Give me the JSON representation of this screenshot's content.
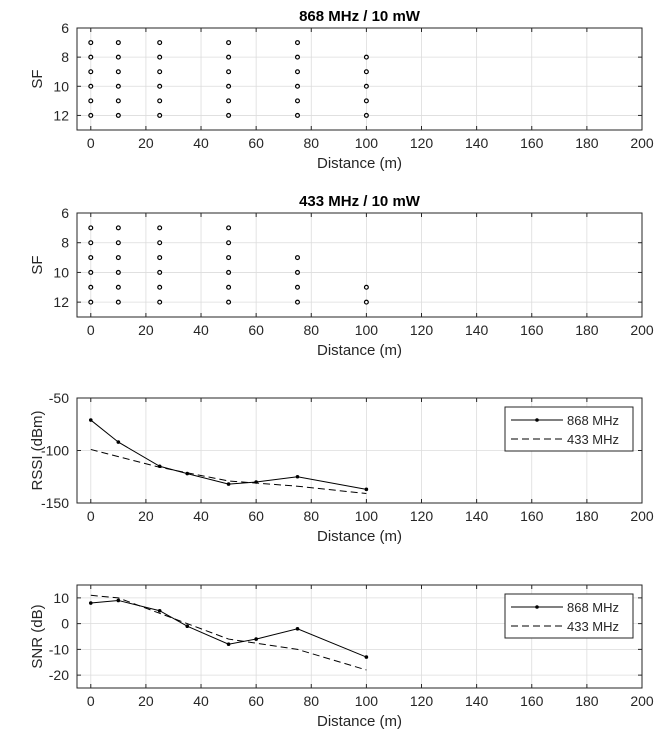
{
  "chart_data": [
    {
      "type": "scatter",
      "title": "868 MHz / 10 mW",
      "xlabel": "Distance (m)",
      "ylabel": "SF",
      "xlim": [
        -5,
        200
      ],
      "ylim": [
        6,
        13
      ],
      "y_reversed": true,
      "xticks": [
        0,
        20,
        40,
        60,
        80,
        100,
        120,
        140,
        160,
        180,
        200
      ],
      "yticks": [
        6,
        8,
        10,
        12
      ],
      "grid": true,
      "marker": "hollow-circle",
      "color": "#000000",
      "points": [
        {
          "x": 0,
          "sf": [
            7,
            8,
            9,
            10,
            11,
            12
          ]
        },
        {
          "x": 10,
          "sf": [
            7,
            8,
            9,
            10,
            11,
            12
          ]
        },
        {
          "x": 25,
          "sf": [
            7,
            8,
            9,
            10,
            11,
            12
          ]
        },
        {
          "x": 50,
          "sf": [
            7,
            8,
            9,
            10,
            11,
            12
          ]
        },
        {
          "x": 75,
          "sf": [
            7,
            8,
            9,
            10,
            11,
            12
          ]
        },
        {
          "x": 100,
          "sf": [
            8,
            9,
            10,
            11,
            12
          ]
        }
      ]
    },
    {
      "type": "scatter",
      "title": "433 MHz / 10 mW",
      "xlabel": "Distance (m)",
      "ylabel": "SF",
      "xlim": [
        -5,
        200
      ],
      "ylim": [
        6,
        13
      ],
      "y_reversed": true,
      "xticks": [
        0,
        20,
        40,
        60,
        80,
        100,
        120,
        140,
        160,
        180,
        200
      ],
      "yticks": [
        6,
        8,
        10,
        12
      ],
      "grid": true,
      "marker": "hollow-circle",
      "color": "#000000",
      "points": [
        {
          "x": 0,
          "sf": [
            7,
            8,
            9,
            10,
            11,
            12
          ]
        },
        {
          "x": 10,
          "sf": [
            7,
            8,
            9,
            10,
            11,
            12
          ]
        },
        {
          "x": 25,
          "sf": [
            7,
            8,
            9,
            10,
            11,
            12
          ]
        },
        {
          "x": 50,
          "sf": [
            7,
            8,
            9,
            10,
            11,
            12
          ]
        },
        {
          "x": 75,
          "sf": [
            9,
            10,
            11,
            12
          ]
        },
        {
          "x": 100,
          "sf": [
            11,
            12
          ]
        }
      ]
    },
    {
      "type": "line",
      "title": "",
      "xlabel": "Distance (m)",
      "ylabel": "RSSI (dBm)",
      "xlim": [
        -5,
        200
      ],
      "ylim": [
        -150,
        -50
      ],
      "xticks": [
        0,
        20,
        40,
        60,
        80,
        100,
        120,
        140,
        160,
        180,
        200
      ],
      "yticks": [
        -150,
        -100,
        -50
      ],
      "grid": true,
      "legend_position": "top-right",
      "series": [
        {
          "name": "868 MHz",
          "style": "solid-dot",
          "x": [
            0,
            10,
            25,
            35,
            50,
            60,
            75,
            100
          ],
          "values": [
            -71,
            -92,
            -115,
            -122,
            -132,
            -130,
            -125,
            -137
          ]
        },
        {
          "name": "433 MHz",
          "style": "dashed",
          "x": [
            0,
            25,
            50,
            75,
            100
          ],
          "values": [
            -99,
            -116,
            -129,
            -134,
            -141
          ]
        }
      ]
    },
    {
      "type": "line",
      "title": "",
      "xlabel": "Distance (m)",
      "ylabel": "SNR (dB)",
      "xlim": [
        -5,
        200
      ],
      "ylim": [
        -25,
        15
      ],
      "xticks": [
        0,
        20,
        40,
        60,
        80,
        100,
        120,
        140,
        160,
        180,
        200
      ],
      "yticks": [
        -20,
        -10,
        0,
        10
      ],
      "grid": true,
      "legend_position": "top-right",
      "series": [
        {
          "name": "868 MHz",
          "style": "solid-dot",
          "x": [
            0,
            10,
            25,
            35,
            50,
            60,
            75,
            100
          ],
          "values": [
            8,
            9,
            5,
            -1,
            -8,
            -6,
            -2,
            -13
          ]
        },
        {
          "name": "433 MHz",
          "style": "dashed",
          "x": [
            0,
            10,
            25,
            50,
            75,
            100
          ],
          "values": [
            11,
            10,
            4,
            -6,
            -10,
            -18
          ]
        }
      ]
    }
  ]
}
